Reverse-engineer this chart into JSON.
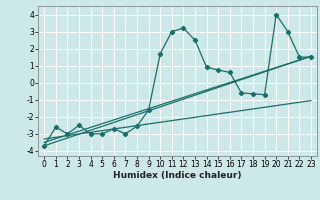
{
  "title": "",
  "xlabel": "Humidex (Indice chaleur)",
  "background_color": "#cce8e8",
  "grid_color": "#ffffff",
  "line_color": "#1a6e6a",
  "xlim": [
    -0.5,
    23.5
  ],
  "ylim": [
    -4.3,
    4.5
  ],
  "xticks": [
    0,
    1,
    2,
    3,
    4,
    5,
    6,
    7,
    8,
    9,
    10,
    11,
    12,
    13,
    14,
    15,
    16,
    17,
    18,
    19,
    20,
    21,
    22,
    23
  ],
  "yticks": [
    -4,
    -3,
    -2,
    -1,
    0,
    1,
    2,
    3,
    4
  ],
  "series": [
    [
      0,
      -3.7
    ],
    [
      1,
      -2.6
    ],
    [
      2,
      -3.0
    ],
    [
      3,
      -2.5
    ],
    [
      4,
      -3.0
    ],
    [
      5,
      -3.0
    ],
    [
      6,
      -2.7
    ],
    [
      7,
      -3.0
    ],
    [
      8,
      -2.55
    ],
    [
      9,
      -1.6
    ],
    [
      10,
      1.7
    ],
    [
      11,
      3.0
    ],
    [
      12,
      3.2
    ],
    [
      13,
      2.5
    ],
    [
      14,
      0.9
    ],
    [
      15,
      0.75
    ],
    [
      16,
      0.6
    ],
    [
      17,
      -0.6
    ],
    [
      18,
      -0.65
    ],
    [
      19,
      -0.7
    ],
    [
      20,
      4.0
    ],
    [
      21,
      3.0
    ],
    [
      22,
      1.5
    ],
    [
      23,
      1.5
    ]
  ],
  "regression_lines": [
    {
      "x": [
        0,
        23
      ],
      "y": [
        -3.3,
        -1.05
      ]
    },
    {
      "x": [
        0,
        23
      ],
      "y": [
        -3.5,
        1.55
      ]
    },
    {
      "x": [
        0,
        23
      ],
      "y": [
        -3.7,
        1.55
      ]
    }
  ],
  "marker": "D",
  "markersize": 2.2,
  "linewidth": 0.9,
  "tick_fontsize": 5.5,
  "xlabel_fontsize": 6.5
}
